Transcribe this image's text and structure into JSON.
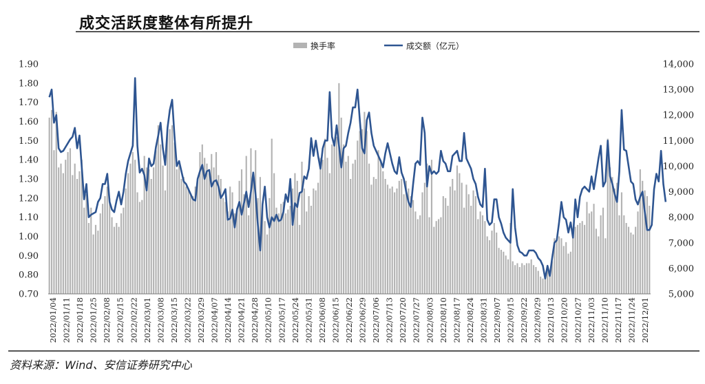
{
  "header": {
    "title": "成交活跃度整体有所提升",
    "source": "资料来源：Wind、安信证券研究中心"
  },
  "chart_data": {
    "type": "bar+line",
    "legend": [
      "换手率",
      "成交额（亿元）"
    ],
    "legend_position": "top-center",
    "grid": false,
    "left_axis": {
      "min": 0.7,
      "max": 1.9,
      "ticks": [
        "0.70",
        "0.80",
        "0.90",
        "1.00",
        "1.10",
        "1.20",
        "1.30",
        "1.40",
        "1.50",
        "1.60",
        "1.70",
        "1.80",
        "1.90"
      ]
    },
    "right_axis": {
      "min": 5000,
      "max": 14000,
      "ticks": [
        "5,000",
        "6,000",
        "7,000",
        "8,000",
        "9,000",
        "10,000",
        "11,000",
        "12,000",
        "13,000",
        "14,000"
      ]
    },
    "x_labels": [
      "2022/01/04",
      "2022/01/11",
      "2022/01/18",
      "2022/01/25",
      "2022/02/08",
      "2022/02/15",
      "2022/02/22",
      "2022/03/01",
      "2022/03/08",
      "2022/03/15",
      "2022/03/22",
      "2022/03/29",
      "2022/04/07",
      "2022/04/14",
      "2022/04/21",
      "2022/04/28",
      "2022/05/10",
      "2022/05/17",
      "2022/05/24",
      "2022/05/31",
      "2022/06/08",
      "2022/06/15",
      "2022/06/22",
      "2022/06/29",
      "2022/07/06",
      "2022/07/13",
      "2022/07/20",
      "2022/07/27",
      "2022/08/03",
      "2022/08/10",
      "2022/08/17",
      "2022/08/24",
      "2022/08/31",
      "2022/09/07",
      "2022/09/15",
      "2022/09/22",
      "2022/09/29",
      "2022/10/13",
      "2022/10/20",
      "2022/10/27",
      "2022/11/03",
      "2022/11/10",
      "2022/11/17",
      "2022/11/24",
      "2022/12/01"
    ],
    "series": [
      {
        "name": "换手率",
        "axis": "left",
        "color": "#b3b3b3",
        "values": [
          1.62,
          1.66,
          1.45,
          1.65,
          1.36,
          1.38,
          1.33,
          1.4,
          1.44,
          1.46,
          1.32,
          1.38,
          1.3,
          1.34,
          1.4,
          1.15,
          1.22,
          1.07,
          1.15,
          1.01,
          1.06,
          1.03,
          1.12,
          1.17,
          1.21,
          1.26,
          1.2,
          1.1,
          1.05,
          1.07,
          1.05,
          1.12,
          1.15,
          1.25,
          1.33,
          1.38,
          1.44,
          1.4,
          1.23,
          1.18,
          1.19,
          1.42,
          1.36,
          1.35,
          1.3,
          1.36,
          1.45,
          1.58,
          1.48,
          1.37,
          1.24,
          1.56,
          1.56,
          1.58,
          1.49,
          1.35,
          1.37,
          1.3,
          1.31,
          1.26,
          1.25,
          1.22,
          1.21,
          1.26,
          1.3,
          1.44,
          1.48,
          1.41,
          1.38,
          1.33,
          1.43,
          1.36,
          1.44,
          1.32,
          1.3,
          1.2,
          1.18,
          1.13,
          1.26,
          1.23,
          1.12,
          1.15,
          1.29,
          1.35,
          1.22,
          1.42,
          1.11,
          1.46,
          1.31,
          1.45,
          1.2,
          1.31,
          1.17,
          1.08,
          1.01,
          1.2,
          1.51,
          1.33,
          1.15,
          1.12,
          1.17,
          1.18,
          1.12,
          1.14,
          1.16,
          1.25,
          1.33,
          1.29,
          1.06,
          1.39,
          1.25,
          1.13,
          1.21,
          1.16,
          1.25,
          1.24,
          1.28,
          1.41,
          1.4,
          1.51,
          1.41,
          1.33,
          1.48,
          1.5,
          1.52,
          1.8,
          1.62,
          1.48,
          1.39,
          1.42,
          1.3,
          1.38,
          1.4,
          1.5,
          1.55,
          1.56,
          1.65,
          1.55,
          1.38,
          1.27,
          1.31,
          1.3,
          1.45,
          1.4,
          1.34,
          1.3,
          1.27,
          1.25,
          1.26,
          1.23,
          1.25,
          1.29,
          1.3,
          1.22,
          1.29,
          1.25,
          1.21,
          1.19,
          1.13,
          1.09,
          1.11,
          1.23,
          1.28,
          1.38,
          1.1,
          1.4,
          1.05,
          1.08,
          1.09,
          1.1,
          1.21,
          1.2,
          1.16,
          1.26,
          1.3,
          1.24,
          1.37,
          1.33,
          1.28,
          1.15,
          1.27,
          1.22,
          1.16,
          1.24,
          1.21,
          1.09,
          1.13,
          1.11,
          1.08,
          1.0,
          0.98,
          1.03,
          1.07,
          1.02,
          0.94,
          0.93,
          0.92,
          0.9,
          0.88,
          1.07,
          0.87,
          0.85,
          0.86,
          0.84,
          0.86,
          0.85,
          0.86,
          0.86,
          0.88,
          0.85,
          0.84,
          0.82,
          0.79,
          0.78,
          0.79,
          0.82,
          0.8,
          0.87,
          0.99,
          0.98,
          1.0,
          0.99,
          0.95,
          0.97,
          0.91,
          0.92,
          1.03,
          1.05,
          1.06,
          1.07,
          1.08,
          1.06,
          1.18,
          1.12,
          1.13,
          1.17,
          1.04,
          1.0,
          1.11,
          1.15,
          0.99,
          1.51,
          1.36,
          1.31,
          1.25,
          1.28,
          1.11,
          1.23,
          1.11,
          1.07,
          1.05,
          1.02,
          1.01,
          1.05,
          1.13,
          1.35,
          1.29,
          1.24,
          1.21,
          1.16
        ]
      },
      {
        "name": "成交额（亿元）",
        "axis": "right",
        "color": "#2e5591",
        "values": [
          12700,
          13000,
          11700,
          12000,
          10700,
          10550,
          10600,
          10750,
          10900,
          11050,
          11150,
          11500,
          10700,
          11200,
          9950,
          8700,
          9300,
          8000,
          8100,
          8150,
          8200,
          8600,
          8750,
          9300,
          9300,
          9700,
          8600,
          8300,
          8200,
          8650,
          9000,
          8500,
          9000,
          9700,
          10200,
          10500,
          10800,
          13450,
          10800,
          9750,
          9900,
          9650,
          9050,
          10300,
          10000,
          10100,
          10750,
          11200,
          11700,
          10700,
          10050,
          11500,
          12200,
          12600,
          11200,
          10000,
          10200,
          9800,
          9400,
          9300,
          9100,
          8900,
          8700,
          8650,
          9500,
          9800,
          10050,
          9500,
          9800,
          9850,
          9200,
          9400,
          9450,
          9200,
          8750,
          8900,
          9100,
          7900,
          7950,
          8300,
          7600,
          8300,
          8600,
          8100,
          8550,
          9000,
          8400,
          9000,
          9750,
          8900,
          7700,
          6700,
          8500,
          9200,
          8000,
          7600,
          8000,
          7850,
          8100,
          7850,
          7900,
          8200,
          8900,
          8600,
          9500,
          7700,
          8550,
          8400,
          8950,
          9000,
          9600,
          9500,
          9900,
          11100,
          10400,
          11000,
          10400,
          9900,
          10700,
          11000,
          11000,
          12900,
          11150,
          10800,
          11600,
          10800,
          9950,
          10700,
          10800,
          11300,
          11700,
          12300,
          12300,
          13000,
          11800,
          10700,
          10500,
          11800,
          12100,
          11300,
          10800,
          10600,
          10400,
          10200,
          9950,
          10500,
          10900,
          10500,
          10100,
          9800,
          9700,
          10350,
          9750,
          9500,
          9000,
          8600,
          8400,
          9300,
          10100,
          10200,
          10050,
          11900,
          11300,
          9200,
          10000,
          9700,
          9800,
          9700,
          9800,
          10600,
          10200,
          10100,
          9800,
          9800,
          10400,
          10500,
          10600,
          10200,
          10200,
          11300,
          10300,
          10100,
          9900,
          9500,
          9300,
          8800,
          8500,
          8400,
          9900,
          7900,
          7700,
          7800,
          8700,
          8700,
          8000,
          7750,
          7400,
          7200,
          7100,
          7000,
          9100,
          7600,
          6900,
          6650,
          6600,
          6500,
          6500,
          6700,
          6700,
          6700,
          6600,
          6400,
          6300,
          6100,
          5600,
          6100,
          5700,
          6400,
          7000,
          7100,
          7800,
          8600,
          8000,
          7900,
          7400,
          7800,
          7200,
          8700,
          8000,
          8800,
          9100,
          9200,
          9100,
          9000,
          9600,
          9100,
          9700,
          10300,
          10800,
          9200,
          9400,
          11000,
          9600,
          9300,
          8900,
          8600,
          9800,
          12200,
          10650,
          10600,
          10000,
          9400,
          9300,
          8700,
          8500,
          8800,
          9000,
          8200,
          7500,
          7500,
          7700,
          9100,
          9700,
          9400,
          10600,
          9300,
          8600
        ]
      }
    ]
  }
}
